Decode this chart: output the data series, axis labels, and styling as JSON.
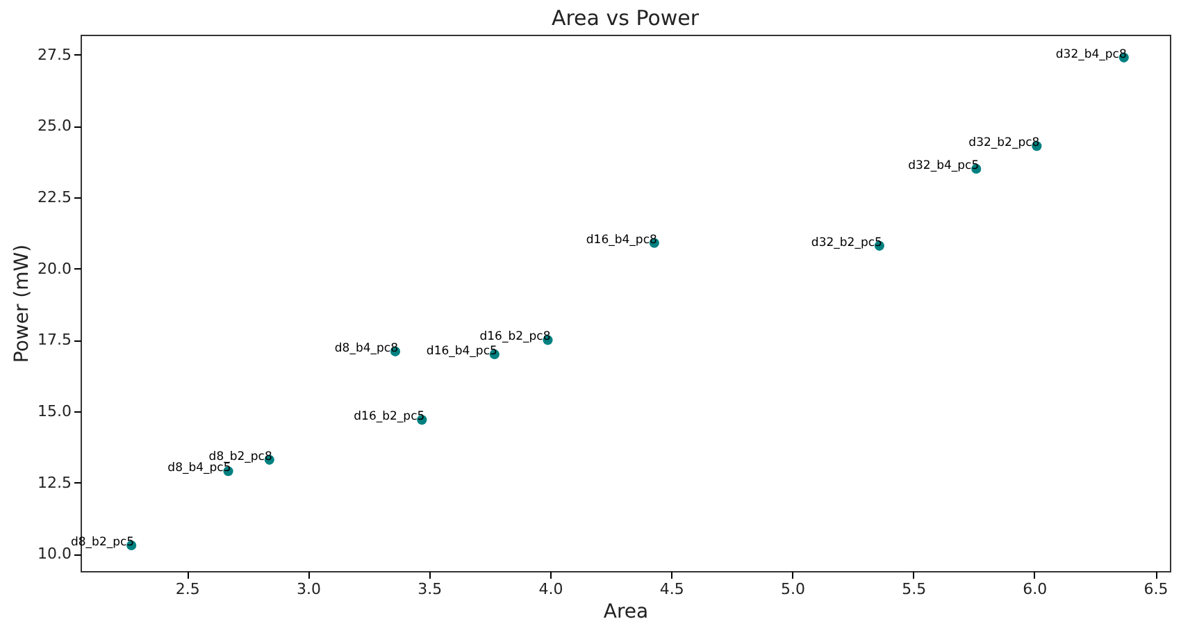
{
  "chart_data": {
    "type": "scatter",
    "title": "Area vs Power",
    "xlabel": "Area",
    "ylabel": "Power (mW)",
    "x": [
      2.27,
      2.67,
      2.84,
      3.36,
      3.47,
      3.77,
      3.99,
      4.43,
      5.36,
      5.76,
      6.01,
      6.37
    ],
    "series": [
      {
        "color": "#008080",
        "values": [
          10.3,
          12.9,
          13.3,
          17.1,
          14.7,
          17.0,
          17.5,
          20.9,
          20.8,
          23.5,
          24.3,
          27.4
        ]
      }
    ],
    "marker": "circle",
    "grid": false,
    "legend": false,
    "xlim": [
      2.06,
      6.56
    ],
    "ylim": [
      9.4,
      28.2
    ],
    "xticks": [
      2.5,
      {
        "value": 3,
        "label": "3.0"
      },
      3.5,
      {
        "value": 4,
        "label": "4.0"
      },
      4.5,
      {
        "value": 5,
        "label": "5.0"
      },
      5.5,
      {
        "value": 6,
        "label": "6.0"
      },
      6.5
    ],
    "yticks": [
      {
        "value": 10,
        "label": "10.0"
      },
      12.5,
      {
        "value": 15,
        "label": "15.0"
      },
      17.5,
      {
        "value": 20,
        "label": "20.0"
      },
      22.5,
      {
        "value": 25,
        "label": "25.0"
      },
      27.5
    ],
    "annotations": [
      {
        "text": "d8_b2_pc5",
        "x": 2.27,
        "y": 10.3
      },
      {
        "text": "d8_b4_pc5",
        "x": 2.67,
        "y": 12.9
      },
      {
        "text": "d8_b2_pc8",
        "x": 2.84,
        "y": 13.3
      },
      {
        "text": "d8_b4_pc8",
        "x": 3.36,
        "y": 17.1
      },
      {
        "text": "d16_b2_pc5",
        "x": 3.47,
        "y": 14.7
      },
      {
        "text": "d16_b4_pc5",
        "x": 3.77,
        "y": 17.0
      },
      {
        "text": "d16_b2_pc8",
        "x": 3.99,
        "y": 17.5
      },
      {
        "text": "d16_b4_pc8",
        "x": 4.43,
        "y": 20.9
      },
      {
        "text": "d32_b2_pc5",
        "x": 5.36,
        "y": 20.8
      },
      {
        "text": "d32_b4_pc5",
        "x": 5.76,
        "y": 23.5
      },
      {
        "text": "d32_b2_pc8",
        "x": 6.01,
        "y": 24.3
      },
      {
        "text": "d32_b4_pc8",
        "x": 6.37,
        "y": 27.4
      }
    ]
  }
}
